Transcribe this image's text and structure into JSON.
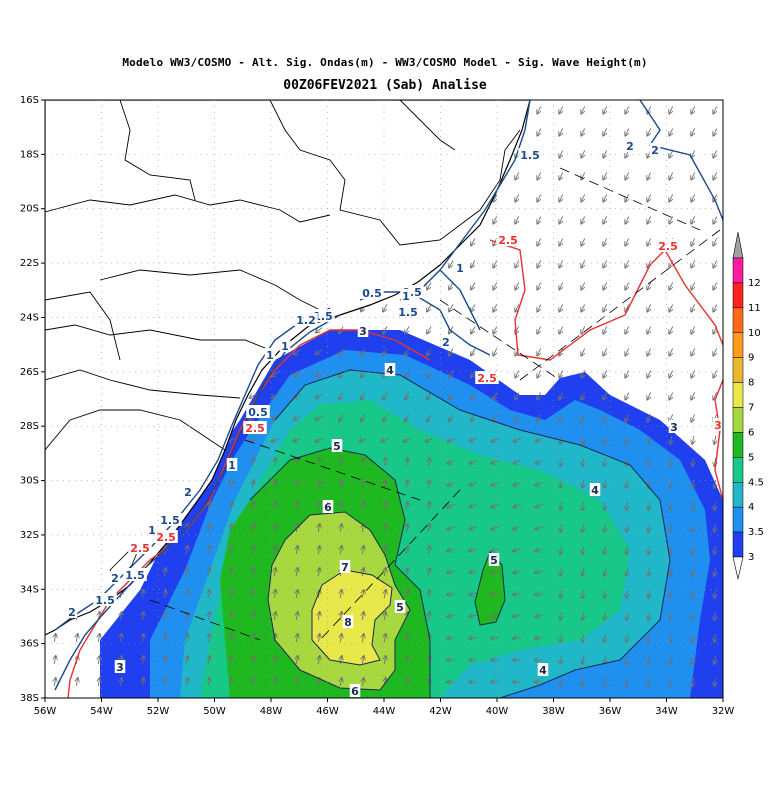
{
  "title_line1": "Modelo WW3/COSMO - Alt. Sig. Ondas(m) - WW3/COSMO Model - Sig. Wave Height(m)",
  "title_line2": "00Z06FEV2021 (Sab) Analise",
  "lat_ticks": [
    "16S",
    "18S",
    "20S",
    "22S",
    "24S",
    "26S",
    "28S",
    "30S",
    "32S",
    "34S",
    "36S",
    "38S"
  ],
  "lon_ticks": [
    "56W",
    "54W",
    "52W",
    "50W",
    "48W",
    "46W",
    "44W",
    "42W",
    "40W",
    "38W",
    "36W",
    "34W",
    "32W"
  ],
  "colorbar": {
    "labels": [
      "12",
      "11",
      "10",
      "9",
      "8",
      "7",
      "6",
      "5",
      "4.5",
      "4",
      "3.5",
      "3"
    ],
    "colors": [
      "#ff1aa0",
      "#ff2020",
      "#ff6a1a",
      "#ff9a1a",
      "#e8b830",
      "#e8e84a",
      "#a8d840",
      "#20b820",
      "#18c888",
      "#20b8c8",
      "#2090f0",
      "#2040f0"
    ],
    "top_arrow_color": "#a0a0a0"
  },
  "contour_labels": {
    "red": [
      "2.5",
      "2.5",
      "2.5",
      "2.5",
      "2.5",
      "2.5",
      "3"
    ],
    "blue": [
      "1.5",
      "2",
      "2",
      "1",
      "0.5",
      "1",
      "0.5",
      "1.5",
      "2",
      "1.5",
      "1.2",
      "1",
      "1",
      "0.5",
      "1",
      "2",
      "1.5",
      "1",
      "1.5",
      "2",
      "1.5",
      "2"
    ],
    "black": [
      "3",
      "4",
      "5",
      "6",
      "7",
      "8",
      "5",
      "4",
      "5",
      "3",
      "6",
      "4",
      "3"
    ]
  },
  "map_colors": {
    "land_border": "#000000",
    "arrow": "#707070",
    "contour_red": "#e83030",
    "contour_blue": "#1a4a8a",
    "contour_black": "#1a2a50"
  }
}
